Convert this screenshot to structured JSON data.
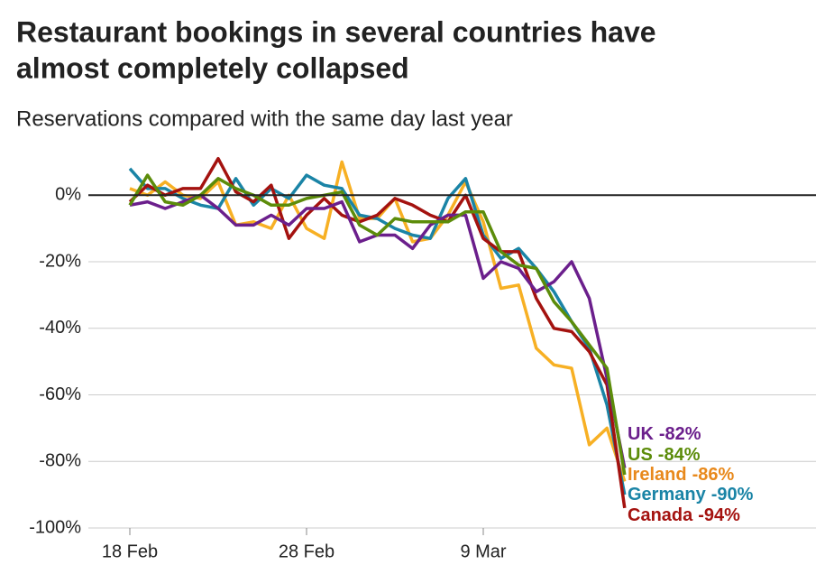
{
  "chart_data": {
    "type": "line",
    "title": [
      "Restaurant bookings in several countries have",
      "almost completely collapsed"
    ],
    "subtitle": "Reservations compared with the same day last year",
    "categories": [
      "18 Feb",
      null,
      null,
      null,
      null,
      null,
      null,
      null,
      null,
      null,
      "28 Feb",
      null,
      null,
      null,
      null,
      null,
      null,
      null,
      null,
      null,
      "9 Mar",
      null,
      null,
      null,
      null,
      null,
      null,
      null,
      null
    ],
    "ylim": [
      -100,
      12
    ],
    "yticks": [
      {
        "value": 0,
        "label": "0%"
      },
      {
        "value": -20,
        "label": "-20%"
      },
      {
        "value": -40,
        "label": "-40%"
      },
      {
        "value": -60,
        "label": "-60%"
      },
      {
        "value": -80,
        "label": "-80%"
      },
      {
        "value": -100,
        "label": "-100%"
      }
    ],
    "grid": true,
    "series": [
      {
        "name": "Ireland",
        "color": "#f7b024",
        "label_color": "#e8891c",
        "values": [
          2,
          0,
          4,
          0,
          -1,
          4,
          -9,
          -8,
          -10,
          0,
          -10,
          -13,
          10,
          -7,
          -7,
          -1,
          -14,
          -13,
          -6,
          4,
          -8,
          -28,
          -27,
          -46,
          -51,
          -52,
          -75,
          -70,
          -86
        ],
        "value_labels": [
          null,
          null,
          null,
          null,
          null,
          null,
          null,
          null,
          null,
          null,
          null,
          null,
          null,
          null,
          null,
          null,
          null,
          null,
          null,
          null,
          null,
          null,
          null,
          null,
          null,
          null,
          null,
          null,
          "-86%"
        ]
      },
      {
        "name": "Germany",
        "color": "#1a84a6",
        "values": [
          8,
          2,
          2,
          -1,
          -3,
          -4,
          5,
          -3,
          2,
          -1,
          6,
          3,
          2,
          -6,
          -7,
          -10,
          -12,
          -13,
          -1,
          5,
          -12,
          -19,
          -16,
          -22,
          -29,
          -38,
          -46,
          -63,
          -90
        ],
        "value_labels": [
          null,
          null,
          null,
          null,
          null,
          null,
          null,
          null,
          null,
          null,
          null,
          null,
          null,
          null,
          null,
          null,
          null,
          null,
          null,
          null,
          null,
          null,
          null,
          null,
          null,
          null,
          null,
          null,
          "-90%"
        ]
      },
      {
        "name": "Canada",
        "color": "#a4120f",
        "values": [
          -2,
          3,
          0,
          2,
          2,
          11,
          1,
          -2,
          3,
          -13,
          -6,
          -1,
          -6,
          -8,
          -6,
          -1,
          -3,
          -6,
          -8,
          0,
          -13,
          -17,
          -17,
          -31,
          -40,
          -41,
          -47,
          -57,
          -94
        ],
        "value_labels": [
          null,
          null,
          null,
          null,
          null,
          null,
          null,
          null,
          null,
          null,
          null,
          null,
          null,
          null,
          null,
          null,
          null,
          null,
          null,
          null,
          null,
          null,
          null,
          null,
          null,
          null,
          null,
          null,
          "-94%"
        ]
      },
      {
        "name": "UK",
        "color": "#6b1f8c",
        "values": [
          -3,
          -2,
          -4,
          -2,
          0,
          -4,
          -9,
          -9,
          -6,
          -9,
          -4,
          -4,
          -2,
          -14,
          -12,
          -12,
          -16,
          -9,
          -6,
          -6,
          -25,
          -20,
          -22,
          -29,
          -26,
          -20,
          -31,
          -55,
          -82
        ],
        "value_labels": [
          null,
          null,
          null,
          null,
          null,
          null,
          null,
          null,
          null,
          null,
          null,
          null,
          null,
          null,
          null,
          null,
          null,
          null,
          null,
          null,
          null,
          null,
          null,
          null,
          null,
          null,
          null,
          null,
          "-82%"
        ]
      },
      {
        "name": "US",
        "color": "#5c8c0a",
        "values": [
          -3,
          6,
          -2,
          -3,
          0,
          5,
          2,
          0,
          -3,
          -3,
          -1,
          0,
          1,
          -9,
          -12,
          -7,
          -8,
          -8,
          -8,
          -5,
          -5,
          -17,
          -21,
          -22,
          -32,
          -38,
          -45,
          -52,
          -84
        ],
        "value_labels": [
          null,
          null,
          null,
          null,
          null,
          null,
          null,
          null,
          null,
          null,
          null,
          null,
          null,
          null,
          null,
          null,
          null,
          null,
          null,
          null,
          null,
          null,
          null,
          null,
          null,
          null,
          null,
          null,
          "-84%"
        ]
      }
    ]
  }
}
